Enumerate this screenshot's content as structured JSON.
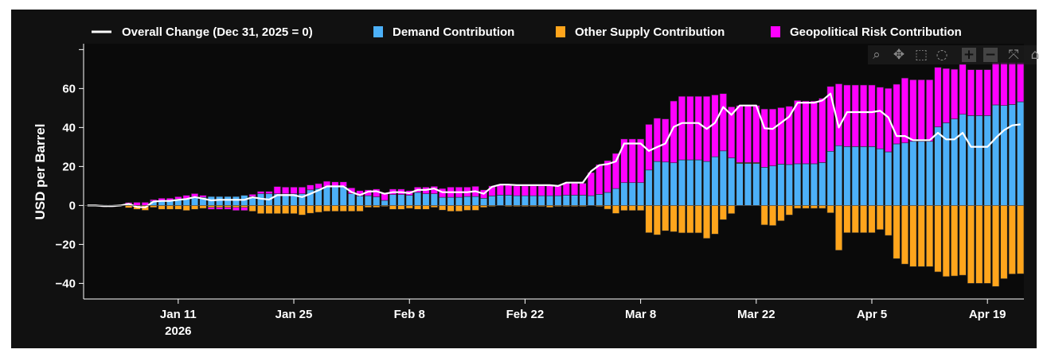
{
  "chart_data": {
    "type": "bar",
    "barmode": "relative",
    "legend": {
      "placement": "top",
      "items": [
        {
          "label": "Overall Change (Dec 31, 2025 = 0)",
          "kind": "line",
          "color": "#ffffff"
        },
        {
          "label": "Demand Contribution",
          "kind": "bar",
          "color": "#4cb0f8"
        },
        {
          "label": "Other Supply Contribution",
          "kind": "bar",
          "color": "#ffa51c"
        },
        {
          "label": "Geopolitical Risk Contribution",
          "kind": "bar",
          "color": "#ff00ff"
        }
      ]
    },
    "ylabel": "USD per Barrel",
    "ylim": [
      -48,
      83
    ],
    "yticks": [
      -40,
      -20,
      0,
      20,
      40,
      60
    ],
    "yminor_ticks": [
      80
    ],
    "xlim": [
      "2025-12-30T13:00",
      "2026-04-23T10:00"
    ],
    "xticks": [
      {
        "date": "2026-01-11",
        "label": "Jan 11",
        "sub": "2026"
      },
      {
        "date": "2026-01-25",
        "label": "Jan 25"
      },
      {
        "date": "2026-02-08",
        "label": "Feb 8"
      },
      {
        "date": "2026-02-22",
        "label": "Feb 22"
      },
      {
        "date": "2026-03-08",
        "label": "Mar 8"
      },
      {
        "date": "2026-03-22",
        "label": "Mar 22"
      },
      {
        "date": "2026-04-05",
        "label": "Apr 5"
      },
      {
        "date": "2026-04-19",
        "label": "Apr 19"
      }
    ],
    "grid": false,
    "bar_dates": [
      "2026-01-01",
      "2026-01-02",
      "2026-01-03",
      "2026-01-04",
      "2026-01-05",
      "2026-01-06",
      "2026-01-07",
      "2026-01-08",
      "2026-01-09",
      "2026-01-10",
      "2026-01-11",
      "2026-01-12",
      "2026-01-13",
      "2026-01-14",
      "2026-01-15",
      "2026-01-16",
      "2026-01-17",
      "2026-01-18",
      "2026-01-19",
      "2026-01-20",
      "2026-01-21",
      "2026-01-22",
      "2026-01-23",
      "2026-01-24",
      "2026-01-25",
      "2026-01-26",
      "2026-01-27",
      "2026-01-28",
      "2026-01-29",
      "2026-01-30",
      "2026-01-31",
      "2026-02-01",
      "2026-02-02",
      "2026-02-03",
      "2026-02-04",
      "2026-02-05",
      "2026-02-06",
      "2026-02-07",
      "2026-02-08",
      "2026-02-09",
      "2026-02-10",
      "2026-02-11",
      "2026-02-12",
      "2026-02-13",
      "2026-02-14",
      "2026-02-15",
      "2026-02-16",
      "2026-02-17",
      "2026-02-18",
      "2026-02-19",
      "2026-02-20",
      "2026-02-21",
      "2026-02-22",
      "2026-02-23",
      "2026-02-24",
      "2026-02-25",
      "2026-02-26",
      "2026-02-27",
      "2026-02-28",
      "2026-03-01",
      "2026-03-02",
      "2026-03-03",
      "2026-03-04",
      "2026-03-05",
      "2026-03-06",
      "2026-03-07",
      "2026-03-08",
      "2026-03-09",
      "2026-03-10",
      "2026-03-11",
      "2026-03-12",
      "2026-03-13",
      "2026-03-14",
      "2026-03-15",
      "2026-03-16",
      "2026-03-17",
      "2026-03-18",
      "2026-03-19",
      "2026-03-20",
      "2026-03-21",
      "2026-03-22",
      "2026-03-23",
      "2026-03-24",
      "2026-03-25",
      "2026-03-26",
      "2026-03-27",
      "2026-03-28",
      "2026-03-29",
      "2026-03-30",
      "2026-03-31",
      "2026-04-01",
      "2026-04-02",
      "2026-04-03",
      "2026-04-04",
      "2026-04-05",
      "2026-04-06",
      "2026-04-07",
      "2026-04-08",
      "2026-04-09",
      "2026-04-10",
      "2026-04-11",
      "2026-04-12",
      "2026-04-13",
      "2026-04-14",
      "2026-04-15",
      "2026-04-16",
      "2026-04-17",
      "2026-04-18",
      "2026-04-19",
      "2026-04-20",
      "2026-04-21",
      "2026-04-22",
      "2026-04-23"
    ],
    "series": [
      {
        "name": "Demand Contribution",
        "type": "bar",
        "color": "#4cb0f8",
        "values": [
          0,
          0.3,
          0.3,
          0,
          0.5,
          0,
          0,
          2.2,
          2.5,
          2.5,
          3.3,
          3.5,
          4.5,
          4.2,
          4.6,
          4.6,
          4.6,
          4.6,
          5.2,
          4.6,
          6,
          6,
          6,
          6,
          6,
          6,
          8,
          8.7,
          9.7,
          9.7,
          9.7,
          6,
          4.9,
          5,
          4.4,
          2.6,
          5.6,
          5.6,
          5.2,
          6.7,
          6,
          6,
          4.2,
          4.2,
          4.2,
          4.6,
          4.6,
          3.7,
          4.9,
          5.3,
          5.3,
          5,
          5,
          5,
          5,
          5,
          5,
          5.3,
          5.3,
          5.3,
          5,
          5.7,
          6.7,
          8.7,
          11.7,
          11.7,
          11.7,
          18.2,
          22.6,
          22.3,
          21.9,
          23.4,
          23.4,
          23.4,
          22.6,
          25,
          28,
          24.4,
          21.6,
          21.6,
          21.6,
          19.6,
          20.3,
          21.2,
          21,
          21.4,
          21.4,
          21.4,
          22,
          27.8,
          30.7,
          30.2,
          30.2,
          30.2,
          30.2,
          29.1,
          27.5,
          31.6,
          32.1,
          32.9,
          32.9,
          32.9,
          40.3,
          42.4,
          44.4,
          46.8,
          46.1,
          46.1,
          46.1,
          51.6,
          51.3,
          51.8,
          53.2
        ]
      },
      {
        "name": "Other Supply Contribution",
        "type": "bar",
        "color": "#ffa51c",
        "values": [
          0,
          0,
          0,
          0,
          -1.2,
          -2,
          -2.5,
          -1,
          -2,
          -2,
          -2,
          -2.6,
          -2,
          -1.5,
          -1,
          -1,
          -1,
          -1,
          -1,
          -3,
          -4.2,
          -4.2,
          -4.2,
          -4.2,
          -4.2,
          -4.9,
          -4,
          -3.5,
          -3,
          -3,
          -3,
          -3,
          -3,
          -1,
          -1,
          -0.5,
          -2,
          -2,
          -1.5,
          -2,
          -2,
          -1,
          -2.4,
          -3,
          -3,
          -2.5,
          -2.5,
          -1,
          -0.5,
          0,
          -0.5,
          -0.5,
          -0.5,
          -0.5,
          -0.5,
          -1,
          -0.5,
          -0.5,
          -0.5,
          -0.5,
          0,
          -0.5,
          -1.9,
          -4.1,
          -2.6,
          -2.6,
          -2.6,
          -14,
          -15.1,
          -13,
          -13.5,
          -14.1,
          -14.1,
          -14.1,
          -16.9,
          -14.7,
          -7.3,
          -4.2,
          0.4,
          0.4,
          0.4,
          -10,
          -10.3,
          -7.9,
          -4.9,
          -1.5,
          -1.5,
          -1.5,
          -1.5,
          -3.8,
          -23,
          -14,
          -14,
          -14,
          -14,
          -12.4,
          -15.4,
          -27.3,
          -30.1,
          -31.4,
          -31.4,
          -31.4,
          -34.1,
          -36.5,
          -36.2,
          -35.8,
          -40,
          -40,
          -40,
          -41.6,
          -37.6,
          -35.2,
          -35.1
        ]
      },
      {
        "name": "Geopolitical Risk Contribution",
        "type": "bar",
        "color": "#ff00ff",
        "values": [
          0,
          -0.8,
          -0.8,
          0,
          1,
          1.6,
          1.6,
          0.8,
          1.2,
          1.2,
          1.2,
          1.7,
          1.6,
          1,
          -1,
          -1,
          -1,
          -1.6,
          -1.6,
          1.1,
          1.2,
          1.2,
          3.7,
          3.4,
          3.4,
          3.4,
          2.5,
          2.5,
          2.7,
          2.4,
          2.4,
          3,
          2.7,
          3,
          4,
          3.7,
          2.8,
          2.8,
          2.4,
          2.7,
          3.4,
          3.8,
          4.5,
          5.2,
          5.2,
          4.8,
          5.2,
          4.3,
          5.1,
          5.3,
          5.1,
          5,
          5,
          5,
          5,
          5.4,
          5,
          6.1,
          6.1,
          6.1,
          11.9,
          15.3,
          16.3,
          18,
          22.4,
          22.4,
          22.4,
          23.4,
          22.2,
          22.1,
          31.7,
          32.6,
          32.6,
          32.6,
          33.4,
          31.7,
          29.4,
          26.2,
          29.3,
          29.3,
          29.3,
          29.9,
          29.2,
          29,
          29.9,
          32.5,
          32.2,
          32.2,
          33,
          33.3,
          31.7,
          31.6,
          31.6,
          31.6,
          31.6,
          31.6,
          32.6,
          30.6,
          33.3,
          31.6,
          31.6,
          31.6,
          30.6,
          27.9,
          25.5,
          25.6,
          23.6,
          23.6,
          23.6,
          21.7,
          22,
          21.5,
          20.1
        ]
      },
      {
        "name": "Overall Change (Dec 31, 2025 = 0)",
        "type": "line",
        "color": "#ffffff",
        "first_date": "2025-12-31",
        "values": [
          0,
          0,
          -0.3,
          -0.3,
          0,
          0.8,
          -0.8,
          -1,
          2,
          2.3,
          2.3,
          2.9,
          3.3,
          4.3,
          3.5,
          2.6,
          2.9,
          2.9,
          2.9,
          2.9,
          4.2,
          3.5,
          3,
          5.3,
          5.3,
          5.3,
          4.3,
          6,
          7.8,
          9.8,
          9.8,
          9.8,
          6.8,
          5.3,
          7.1,
          7.3,
          6,
          6.8,
          6.8,
          6.3,
          8,
          8,
          8.7,
          6.8,
          6.8,
          6.8,
          6.8,
          7.3,
          6,
          9.6,
          10.7,
          10.7,
          10.4,
          10.4,
          10.4,
          10.4,
          10.4,
          10,
          11.7,
          11.7,
          11.7,
          17.6,
          20.7,
          21.2,
          22.6,
          31.8,
          31.8,
          31.8,
          28,
          30,
          31.8,
          40.3,
          42.3,
          42.3,
          42.3,
          39.3,
          42.4,
          50.5,
          46.5,
          51.3,
          51.3,
          51.3,
          39.6,
          39.3,
          42.4,
          45.6,
          52.7,
          52.7,
          52.7,
          53.9,
          57.4,
          40,
          47.9,
          47.9,
          47.9,
          47.9,
          48.6,
          45.2,
          35.6,
          35.6,
          33.5,
          33.5,
          33.5,
          37.3,
          33.9,
          33.9,
          37.3,
          30.1,
          30.1,
          30.1,
          34.6,
          38.6,
          41.1,
          41.6
        ]
      }
    ]
  },
  "toolbar": {
    "buttons": [
      {
        "name": "zoom",
        "icon": "zoom-icon",
        "glyph": "⌕"
      },
      {
        "name": "pan",
        "icon": "pan-icon",
        "glyph": "✥"
      },
      {
        "name": "box-select",
        "icon": "box-select-icon",
        "glyph": "⬚"
      },
      {
        "name": "lasso-select",
        "icon": "lasso-icon",
        "glyph": "◌"
      },
      {
        "name": "zoom-in",
        "icon": "plus-icon",
        "glyph": "+"
      },
      {
        "name": "zoom-out",
        "icon": "minus-icon",
        "glyph": "−"
      },
      {
        "name": "autoscale",
        "icon": "autoscale-icon",
        "glyph": "⤧"
      },
      {
        "name": "reset-axes",
        "icon": "home-icon",
        "glyph": "⌂"
      }
    ]
  }
}
